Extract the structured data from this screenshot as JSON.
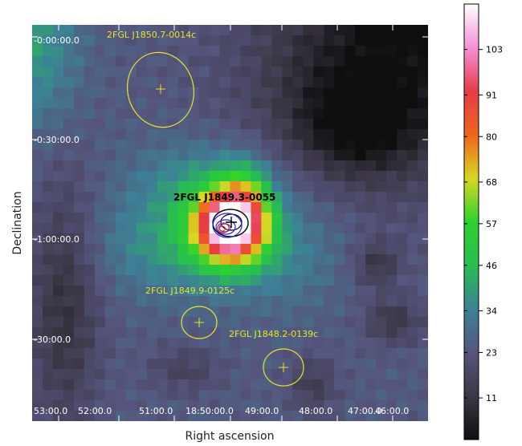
{
  "chart_data": {
    "type": "heatmap",
    "xlabel": "Right ascension",
    "ylabel": "Declination",
    "x_tick_labels": [
      "53:00.0",
      "52:00.0",
      "51:00.0",
      "18:50:00.0",
      "49:00.0",
      "48:00.0",
      "47:00.0",
      "46:00.0"
    ],
    "y_tick_labels": [
      "-0:00:00.0",
      "-0:30:00.0",
      "-1:00:00.0",
      "-30:00.0"
    ],
    "colorbar": {
      "range": [
        0,
        115
      ],
      "ticks": [
        11,
        23,
        34,
        46,
        57,
        68,
        80,
        91,
        103
      ],
      "tick_labels": [
        "11",
        "23",
        "34",
        "46",
        "57",
        "68",
        "80",
        "91",
        "103"
      ]
    },
    "sources": [
      {
        "name": "2FGL J1850.7-0014c",
        "color": "#e6e629"
      },
      {
        "name": "2FGL J1849.3-0055",
        "color": "#000000"
      },
      {
        "name": "2FGL J1849.9-0125c",
        "color": "#e6e629"
      },
      {
        "name": "2FGL J1848.2-0139c",
        "color": "#e6e629"
      }
    ],
    "contour_colors": [
      "#000000",
      "#2222dd",
      "#dd2222"
    ],
    "colors": {
      "marker": "#e6e629",
      "background": "#111111"
    }
  }
}
